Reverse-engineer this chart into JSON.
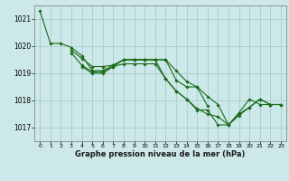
{
  "xlabel": "Graphe pression niveau de la mer (hPa)",
  "x_ticks": [
    0,
    1,
    2,
    3,
    4,
    5,
    6,
    7,
    8,
    9,
    10,
    11,
    12,
    13,
    14,
    15,
    16,
    17,
    18,
    19,
    20,
    21,
    22,
    23
  ],
  "ylim": [
    1016.5,
    1021.5
  ],
  "xlim": [
    -0.5,
    23.5
  ],
  "yticks": [
    1017,
    1018,
    1019,
    1020,
    1021
  ],
  "background_color": "#cce8e8",
  "grid_color": "#aacccc",
  "line_color": "#1a6b1a",
  "s1": [
    1021.3,
    1020.1,
    1020.1,
    1019.95,
    1019.65,
    1019.1,
    1019.1,
    1019.3,
    1019.5,
    1019.5,
    1019.5,
    1019.5,
    1018.8,
    1018.35,
    1018.05,
    1017.65,
    1017.65,
    1017.1,
    1017.1,
    1017.55,
    1018.05,
    1017.85,
    1017.85,
    null
  ],
  "s2": [
    null,
    null,
    null,
    1019.85,
    1019.55,
    1019.25,
    1019.25,
    1019.3,
    1019.5,
    1019.5,
    1019.5,
    1019.5,
    1019.5,
    1018.75,
    1018.5,
    1018.5,
    1017.8,
    null,
    null,
    null,
    null,
    null,
    null,
    null
  ],
  "s3": [
    null,
    null,
    null,
    1019.75,
    1019.3,
    1019.05,
    1019.05,
    1019.25,
    1019.5,
    1019.5,
    1019.5,
    1019.5,
    1019.5,
    1019.1,
    1018.7,
    1018.5,
    1018.15,
    1017.85,
    1017.1,
    1017.5,
    1017.75,
    1018.05,
    1017.85,
    1017.85
  ],
  "s4": [
    null,
    null,
    null,
    null,
    1019.25,
    1019.0,
    1019.0,
    1019.25,
    1019.35,
    1019.35,
    1019.35,
    1019.35,
    1018.8,
    1018.35,
    1018.05,
    1017.7,
    1017.5,
    1017.4,
    1017.1,
    1017.45,
    1017.75,
    1018.05,
    1017.85,
    1017.85
  ]
}
